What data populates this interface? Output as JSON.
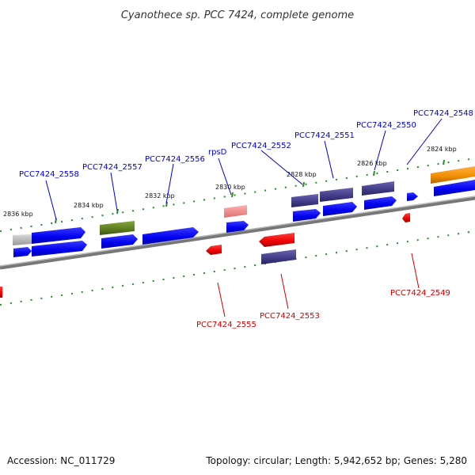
{
  "title": "Cyanothece sp. PCC 7424, complete genome",
  "footer": {
    "accession": "Accession: NC_011729",
    "summary": "Topology: circular; Length: 5,942,652 bp; Genes: 5,280"
  },
  "colors": {
    "forward_cds": "#0000ee",
    "reverse_cds": "#ee0000",
    "purple_feature": "#3f3a85",
    "green_feature": "#5c7a1e",
    "orange_feature": "#f08c00",
    "gray_feature": "#b4b4b4",
    "pink_feature": "#f08080",
    "tick": "#2a8a2a",
    "backbone": "#8a8a8a"
  },
  "scale_labels": [
    "2836 kbp",
    "2834 kbp",
    "2832 kbp",
    "2830 kbp",
    "2828 kbp",
    "2826 kbp",
    "2824 kbp"
  ],
  "forward_labels": [
    "PCC7424_2558",
    "PCC7424_2557",
    "PCC7424_2556",
    "rpsD",
    "PCC7424_2552",
    "PCC7424_2551",
    "PCC7424_2550",
    "PCC7424_2548"
  ],
  "reverse_labels": [
    "PCC7424_2555",
    "PCC7424_2553",
    "PCC7424_2549"
  ]
}
